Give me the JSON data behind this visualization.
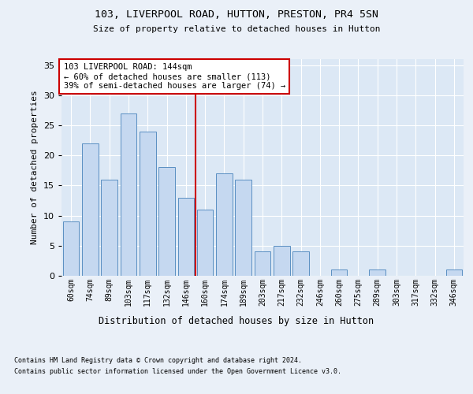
{
  "title1": "103, LIVERPOOL ROAD, HUTTON, PRESTON, PR4 5SN",
  "title2": "Size of property relative to detached houses in Hutton",
  "xlabel": "Distribution of detached houses by size in Hutton",
  "ylabel": "Number of detached properties",
  "categories": [
    "60sqm",
    "74sqm",
    "89sqm",
    "103sqm",
    "117sqm",
    "132sqm",
    "146sqm",
    "160sqm",
    "174sqm",
    "189sqm",
    "203sqm",
    "217sqm",
    "232sqm",
    "246sqm",
    "260sqm",
    "275sqm",
    "289sqm",
    "303sqm",
    "317sqm",
    "332sqm",
    "346sqm"
  ],
  "values": [
    9,
    22,
    16,
    27,
    24,
    18,
    13,
    11,
    17,
    16,
    4,
    5,
    4,
    0,
    1,
    0,
    1,
    0,
    0,
    0,
    1
  ],
  "bar_color": "#c5d8f0",
  "bar_edge_color": "#5a8fc2",
  "property_index": 6,
  "red_line_color": "#cc0000",
  "annotation_text": "103 LIVERPOOL ROAD: 144sqm\n← 60% of detached houses are smaller (113)\n39% of semi-detached houses are larger (74) →",
  "annotation_box_color": "#ffffff",
  "annotation_box_edge": "#cc0000",
  "footnote1": "Contains HM Land Registry data © Crown copyright and database right 2024.",
  "footnote2": "Contains public sector information licensed under the Open Government Licence v3.0.",
  "fig_background": "#eaf0f8",
  "plot_background": "#dce8f5",
  "ylim": [
    0,
    36
  ],
  "yticks": [
    0,
    5,
    10,
    15,
    20,
    25,
    30,
    35
  ]
}
